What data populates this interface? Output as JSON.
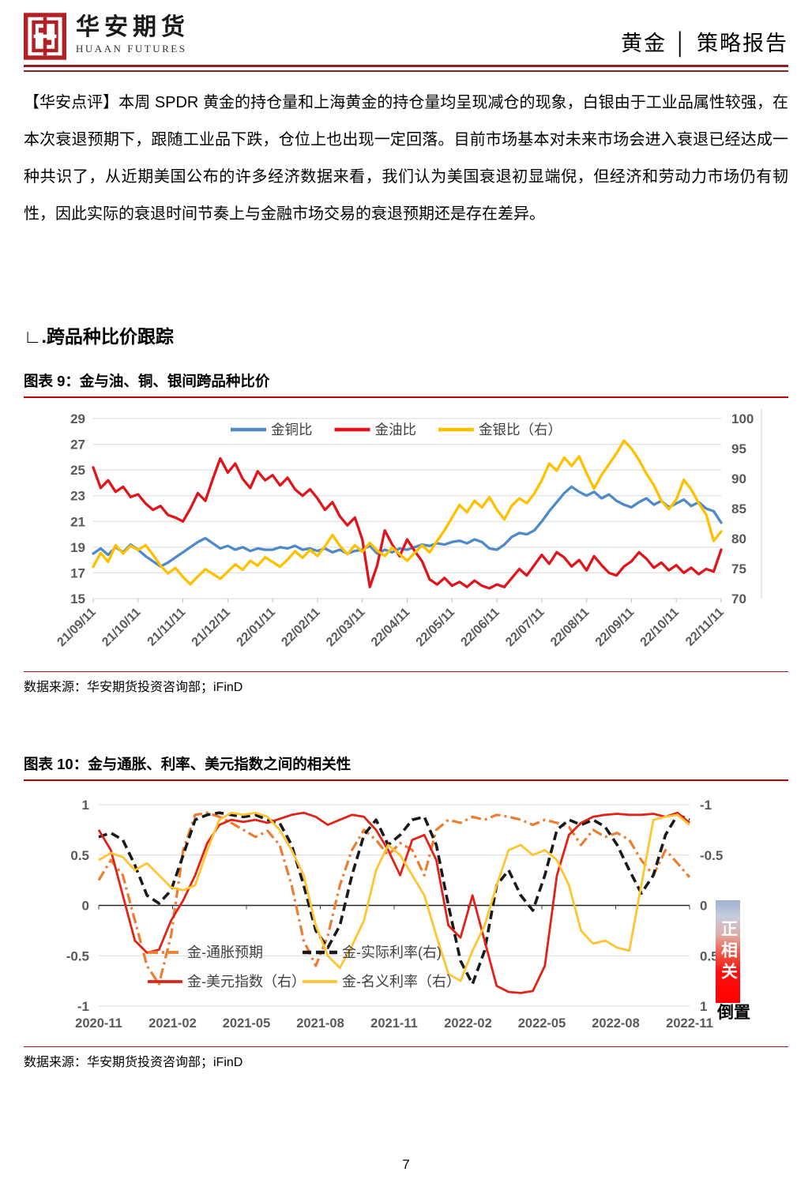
{
  "header": {
    "logo_cn": "华安期货",
    "logo_en": "HUAAN FUTURES",
    "report_label": "黄金 │ 策略报告"
  },
  "commentary": "【华安点评】本周 SPDR 黄金的持仓量和上海黄金的持仓量均呈现减仓的现象，白银由于工业品属性较强，在本次衰退预期下，跟随工业品下跌，仓位上也出现一定回落。目前市场基本对未来市场会进入衰退已经达成一种共识了，从近期美国公布的许多经济数据来看，我们认为美国衰退初显端倪，但经济和劳动力市场仍有韧性，因此实际的衰退时间节奏上与金融市场交易的衰退预期还是存在差异。",
  "section_heading": "∟.跨品种比价跟踪",
  "figure9": {
    "title": "图表 9：金与油、铜、银间跨品种比价",
    "source": "数据来源：华安期货投资咨询部；iFinD"
  },
  "figure10": {
    "title": "图表 10：金与通胀、利率、美元指数之间的相关性",
    "source": "数据来源：华安期货投资咨询部；iFinD",
    "annotation_bar": "正相关",
    "annotation_inverted": "倒置"
  },
  "page_number": "7",
  "colors": {
    "rule_maroon": "#8e2024",
    "title_underline_red": "#c00000",
    "grid_gray": "#d9d9d9",
    "tick_label_gray": "#595959",
    "legend_text_gray": "#404040"
  },
  "chart_data": [
    {
      "type": "line",
      "title": "金与油、铜、银间跨品种比价",
      "x_tick_labels": [
        "21/09/11",
        "21/10/11",
        "21/11/11",
        "21/12/11",
        "22/01/11",
        "22/02/11",
        "22/03/11",
        "22/04/11",
        "22/05/11",
        "22/06/11",
        "22/07/11",
        "22/08/11",
        "22/09/11",
        "22/10/11",
        "22/11/11"
      ],
      "left_axis": {
        "min": 15,
        "max": 29,
        "ticks": [
          29,
          27,
          25,
          23,
          21,
          19,
          17,
          15
        ]
      },
      "right_axis": {
        "min": 70,
        "max": 100,
        "ticks": [
          100,
          95,
          90,
          85,
          80,
          75,
          70
        ]
      },
      "grid": true,
      "legend_position": "top-center",
      "series": [
        {
          "name": "金铜比",
          "axis": "left",
          "color": "#4E8AC8",
          "style": "solid",
          "values": [
            18.5,
            18.9,
            18.4,
            19.0,
            18.6,
            19.2,
            18.8,
            18.3,
            17.9,
            17.5,
            17.8,
            18.2,
            18.6,
            19.0,
            19.4,
            19.7,
            19.3,
            18.9,
            19.1,
            18.8,
            19.0,
            18.7,
            18.9,
            18.8,
            18.8,
            19.0,
            18.9,
            19.1,
            18.8,
            18.9,
            18.7,
            18.9,
            18.6,
            18.8,
            18.5,
            18.7,
            18.8,
            19.1,
            18.5,
            18.8,
            18.6,
            18.9,
            18.8,
            19.0,
            19.2,
            19.1,
            19.3,
            19.2,
            19.4,
            19.5,
            19.3,
            19.6,
            19.4,
            18.9,
            18.8,
            19.2,
            19.8,
            20.1,
            20.0,
            20.3,
            21.0,
            21.8,
            22.5,
            23.2,
            23.7,
            23.3,
            23.0,
            23.3,
            22.8,
            23.1,
            22.6,
            22.3,
            22.1,
            22.5,
            22.8,
            22.3,
            22.6,
            22.1,
            22.4,
            22.7,
            22.2,
            22.5,
            22.0,
            21.8,
            20.9
          ]
        },
        {
          "name": "金油比",
          "axis": "left",
          "color": "#E0151B",
          "style": "solid",
          "values": [
            25.2,
            23.6,
            24.2,
            23.3,
            23.7,
            22.9,
            23.1,
            22.4,
            21.9,
            22.2,
            21.5,
            21.3,
            21.0,
            22.0,
            23.2,
            22.6,
            24.3,
            25.9,
            24.8,
            25.5,
            24.3,
            23.6,
            24.9,
            24.2,
            24.6,
            23.8,
            24.4,
            23.5,
            23.0,
            23.5,
            22.8,
            21.9,
            22.5,
            21.4,
            20.7,
            21.3,
            19.6,
            15.9,
            17.6,
            20.3,
            19.2,
            18.3,
            19.6,
            18.7,
            17.9,
            16.5,
            16.1,
            16.6,
            16.0,
            16.3,
            15.9,
            16.4,
            16.0,
            15.8,
            16.1,
            15.9,
            16.6,
            17.3,
            16.8,
            17.6,
            18.4,
            17.7,
            18.6,
            18.2,
            17.5,
            18.0,
            17.2,
            18.3,
            17.6,
            17.0,
            16.8,
            17.5,
            17.9,
            18.6,
            18.1,
            17.4,
            17.8,
            17.2,
            17.6,
            17.0,
            17.4,
            16.9,
            17.3,
            17.1,
            18.8
          ]
        },
        {
          "name": "金银比（右）",
          "axis": "right",
          "color": "#FFC000",
          "style": "solid",
          "values": [
            75.3,
            77.6,
            76.1,
            78.9,
            77.5,
            78.8,
            78.1,
            78.9,
            77.3,
            75.5,
            74.2,
            75.1,
            73.6,
            72.4,
            73.7,
            74.9,
            74.1,
            73.3,
            74.5,
            75.7,
            74.8,
            76.3,
            75.5,
            76.9,
            76.1,
            75.3,
            76.5,
            77.9,
            76.8,
            78.1,
            77.1,
            78.7,
            80.6,
            78.8,
            77.4,
            78.9,
            77.8,
            79.3,
            78.0,
            77.1,
            78.5,
            77.4,
            76.3,
            77.6,
            78.9,
            77.7,
            79.6,
            81.4,
            83.5,
            85.6,
            84.4,
            86.3,
            85.2,
            86.9,
            84.8,
            83.2,
            85.5,
            86.7,
            85.9,
            87.5,
            89.7,
            92.5,
            91.3,
            93.5,
            92.1,
            93.7,
            90.9,
            88.3,
            90.6,
            92.4,
            94.2,
            96.3,
            95.0,
            93.1,
            90.8,
            88.9,
            86.3,
            84.9,
            86.5,
            89.8,
            88.2,
            85.9,
            84.0,
            79.6,
            81.2
          ]
        }
      ]
    },
    {
      "type": "line",
      "title": "金与通胀、利率、美元指数之间的相关性",
      "x_tick_labels": [
        "2020-11",
        "2021-02",
        "2021-05",
        "2021-08",
        "2021-11",
        "2022-02",
        "2022-05",
        "2022-08",
        "2022-11"
      ],
      "left_axis": {
        "min": -1,
        "max": 1,
        "ticks": [
          1,
          0.5,
          0,
          -0.5,
          -1
        ]
      },
      "right_axis": {
        "min": -1,
        "max": 1,
        "inverted": true,
        "ticks": [
          -1,
          -0.5,
          0,
          0.5,
          1
        ]
      },
      "grid": true,
      "legend_position": "inside-bottom",
      "series": [
        {
          "name": "金-通胀预期",
          "axis": "left",
          "color": "#ED7D31",
          "style": "dashdot",
          "values": [
            0.25,
            0.45,
            0.3,
            -0.15,
            -0.6,
            -0.78,
            -0.3,
            0.55,
            0.9,
            0.92,
            0.88,
            0.82,
            0.75,
            0.68,
            0.74,
            0.6,
            0.2,
            -0.35,
            -0.6,
            -0.3,
            0.2,
            0.55,
            0.75,
            0.65,
            0.5,
            0.62,
            0.55,
            0.3,
            0.75,
            0.85,
            0.82,
            0.88,
            0.85,
            0.9,
            0.88,
            0.85,
            0.8,
            0.85,
            0.82,
            0.78,
            0.6,
            0.75,
            0.68,
            0.72,
            0.65,
            0.45,
            0.3,
            0.55,
            0.42,
            0.28
          ]
        },
        {
          "name": "金-实际利率(右)",
          "axis": "right",
          "color": "#1A1A1A",
          "style": "dashed",
          "values": [
            -0.68,
            -0.72,
            -0.65,
            -0.4,
            -0.1,
            -0.02,
            -0.15,
            -0.5,
            -0.85,
            -0.9,
            -0.92,
            -0.9,
            -0.88,
            -0.9,
            -0.85,
            -0.82,
            -0.6,
            -0.2,
            0.25,
            0.42,
            0.2,
            -0.3,
            -0.7,
            -0.85,
            -0.6,
            -0.7,
            -0.85,
            -0.88,
            -0.6,
            0.0,
            0.55,
            0.78,
            0.45,
            -0.2,
            -0.35,
            -0.1,
            0.05,
            -0.3,
            -0.75,
            -0.85,
            -0.8,
            -0.85,
            -0.78,
            -0.6,
            -0.35,
            -0.12,
            -0.3,
            -0.7,
            -0.9,
            -0.85
          ]
        },
        {
          "name": "金-美元指数（右）",
          "axis": "right",
          "color": "#E02318",
          "style": "solid",
          "values": [
            -0.75,
            -0.55,
            -0.1,
            0.35,
            0.47,
            0.44,
            0.15,
            -0.05,
            -0.3,
            -0.62,
            -0.8,
            -0.85,
            -0.83,
            -0.85,
            -0.82,
            -0.86,
            -0.9,
            -0.92,
            -0.88,
            -0.8,
            -0.85,
            -0.9,
            -0.88,
            -0.75,
            -0.55,
            -0.3,
            -0.65,
            -0.7,
            -0.45,
            0.2,
            0.32,
            -0.1,
            0.35,
            0.8,
            0.86,
            0.87,
            0.85,
            0.6,
            -0.3,
            -0.7,
            -0.82,
            -0.88,
            -0.9,
            -0.91,
            -0.9,
            -0.9,
            -0.91,
            -0.88,
            -0.92,
            -0.82
          ]
        },
        {
          "name": "金-名义利率（右）",
          "axis": "right",
          "color": "#FFC431",
          "style": "solid",
          "values": [
            -0.45,
            -0.52,
            -0.48,
            -0.35,
            -0.42,
            -0.3,
            -0.18,
            -0.15,
            -0.2,
            -0.55,
            -0.85,
            -0.92,
            -0.9,
            -0.92,
            -0.88,
            -0.75,
            -0.55,
            -0.3,
            0.2,
            0.5,
            0.62,
            0.4,
            0.15,
            -0.35,
            -0.6,
            -0.5,
            -0.3,
            -0.1,
            0.3,
            0.68,
            0.75,
            0.45,
            0.2,
            -0.2,
            -0.55,
            -0.6,
            -0.5,
            -0.55,
            -0.45,
            -0.2,
            0.25,
            0.38,
            0.35,
            0.42,
            0.45,
            -0.2,
            -0.85,
            -0.88,
            -0.9,
            -0.8
          ]
        }
      ]
    }
  ]
}
